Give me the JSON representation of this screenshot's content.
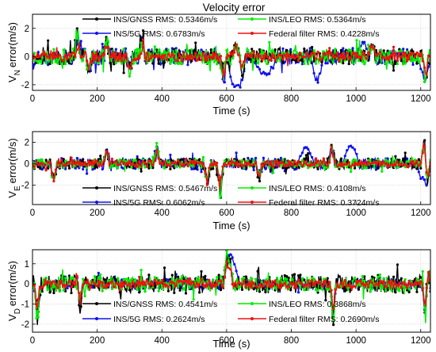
{
  "chart_data": [
    {
      "type": "line",
      "title": "Velocity error",
      "ylabel_main": "V",
      "ylabel_sub": "N",
      "ylabel_rest": "error(m/s)",
      "xlabel": "Time (s)",
      "xlim": [
        0,
        1230
      ],
      "ylim": [
        -2.4,
        3.0
      ],
      "xticks": [
        0,
        200,
        400,
        600,
        800,
        1000,
        1200
      ],
      "yticks": [
        -2,
        0,
        2
      ],
      "grid": true,
      "legend_position": "top",
      "series": [
        {
          "name": "INS/GNSS RMS: 0.5346m/s",
          "color": "#000000",
          "amp": 0.55,
          "seed": 11
        },
        {
          "name": "INS/LEO RMS: 0.5364m/s",
          "color": "#00ee00",
          "amp": 0.55,
          "seed": 23
        },
        {
          "name": "INS/5G RMS: 0.6783m/s",
          "color": "#1010ee",
          "amp": 0.6,
          "seed": 37
        },
        {
          "name": "Federal filter RMS: 0.4228m/s",
          "color": "#ee1111",
          "amp": 0.42,
          "seed": 51
        }
      ],
      "events": [
        {
          "x": 140,
          "y": 1.8
        },
        {
          "x": 175,
          "y": -1.5
        },
        {
          "x": 230,
          "y": 1.5
        },
        {
          "x": 300,
          "y": -1.3
        },
        {
          "x": 340,
          "y": 1.3
        },
        {
          "x": 590,
          "y": -1.9
        },
        {
          "x": 630,
          "y": 1.0
        },
        {
          "x": 650,
          "y": -1.6
        },
        {
          "x": 1050,
          "y": 1.3
        },
        {
          "x": 1215,
          "y": -1.9
        }
      ],
      "blue_segments": [
        {
          "x0": 600,
          "x1": 660,
          "y": -2.2
        },
        {
          "x0": 680,
          "x1": 760,
          "y": -1.2
        },
        {
          "x0": 860,
          "x1": 900,
          "y": -1.6
        },
        {
          "x0": 1000,
          "x1": 1040,
          "y": 1.0
        },
        {
          "x0": 1190,
          "x1": 1230,
          "y": -1.3
        }
      ]
    },
    {
      "type": "line",
      "title": "",
      "ylabel_main": "V",
      "ylabel_sub": "E",
      "ylabel_rest": "error(m/s)",
      "xlabel": "Time (s)",
      "xlim": [
        0,
        1230
      ],
      "ylim": [
        -3.8,
        3.0
      ],
      "xticks": [
        0,
        200,
        400,
        600,
        800,
        1000,
        1200
      ],
      "yticks": [
        -2,
        0,
        2
      ],
      "grid": true,
      "legend_position": "bottom",
      "series": [
        {
          "name": "INS/GNSS RMS: 0.5467m/s",
          "color": "#000000",
          "amp": 0.5,
          "seed": 61
        },
        {
          "name": "INS/LEO RMS: 0.4108m/s",
          "color": "#00ee00",
          "amp": 0.4,
          "seed": 73
        },
        {
          "name": "INS/5G RMS: 0.6062m/s",
          "color": "#1010ee",
          "amp": 0.55,
          "seed": 89
        },
        {
          "name": "Federal filter RMS: 0.3724m/s",
          "color": "#ee1111",
          "amp": 0.35,
          "seed": 97
        }
      ],
      "events": [
        {
          "x": 65,
          "y": -2.1
        },
        {
          "x": 230,
          "y": 1.5
        },
        {
          "x": 385,
          "y": 1.8
        },
        {
          "x": 540,
          "y": -2.2
        },
        {
          "x": 580,
          "y": -3.5
        },
        {
          "x": 700,
          "y": -1.5
        },
        {
          "x": 925,
          "y": 2.0
        },
        {
          "x": 1210,
          "y": 2.8
        },
        {
          "x": 1220,
          "y": -2.0
        }
      ],
      "blue_segments": [
        {
          "x0": 820,
          "x1": 870,
          "y": 1.5
        },
        {
          "x0": 960,
          "x1": 1010,
          "y": 1.6
        },
        {
          "x0": 1190,
          "x1": 1230,
          "y": -2.0
        }
      ]
    },
    {
      "type": "line",
      "title": "",
      "ylabel_main": "V",
      "ylabel_sub": "D",
      "ylabel_rest": "error(m/s)",
      "xlabel": "Time (s)",
      "xlim": [
        0,
        1230
      ],
      "ylim": [
        -2.4,
        1.7
      ],
      "xticks": [
        0,
        200,
        400,
        600,
        800,
        1000,
        1200
      ],
      "yticks": [
        -2,
        -1,
        0,
        1
      ],
      "grid": true,
      "legend_position": "bottom",
      "series": [
        {
          "name": "INS/GNSS RMS: 0.4541m/s",
          "color": "#000000",
          "amp": 0.45,
          "seed": 101
        },
        {
          "name": "INS/LEO RMS:  0.3868m/s",
          "color": "#00ee00",
          "amp": 0.38,
          "seed": 113
        },
        {
          "name": "INS/5G RMS: 0.2624m/s",
          "color": "#1010ee",
          "amp": 0.25,
          "seed": 127
        },
        {
          "name": "Federal filter RMS: 0.2690m/s",
          "color": "#ee1111",
          "amp": 0.25,
          "seed": 131
        }
      ],
      "events": [
        {
          "x": 15,
          "y": -1.8
        },
        {
          "x": 140,
          "y": 1.3
        },
        {
          "x": 145,
          "y": -2.2
        },
        {
          "x": 600,
          "y": 1.5
        },
        {
          "x": 610,
          "y": 1.3
        },
        {
          "x": 930,
          "y": -1.8
        },
        {
          "x": 1215,
          "y": -2.3
        },
        {
          "x": 1220,
          "y": 1.2
        }
      ],
      "blue_segments": [
        {
          "x0": 590,
          "x1": 640,
          "y": 1.2
        }
      ]
    }
  ]
}
